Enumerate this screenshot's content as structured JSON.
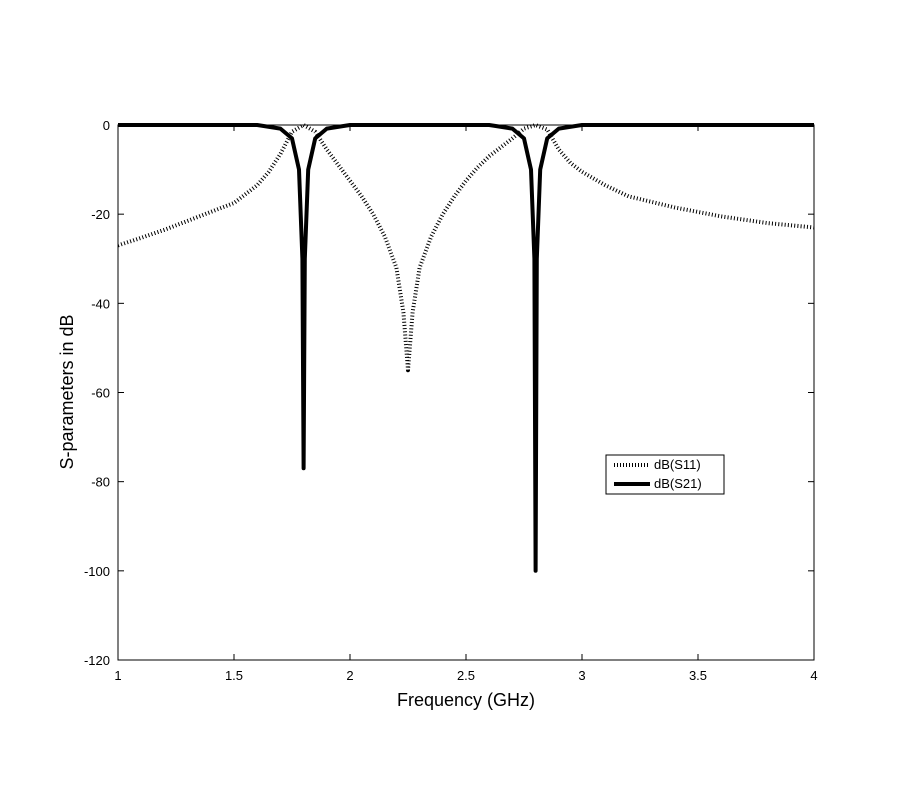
{
  "chart_data": {
    "type": "line",
    "title": "",
    "xlabel": "Frequency (GHz)",
    "ylabel": "S-parameters in dB",
    "xlim": [
      1,
      4
    ],
    "ylim": [
      -120,
      0
    ],
    "x_ticks": [
      1,
      1.5,
      2,
      2.5,
      3,
      3.5,
      4
    ],
    "x_tick_labels": [
      "1",
      "1.5",
      "2",
      "2.5",
      "3",
      "3.5",
      "4"
    ],
    "y_ticks": [
      0,
      -20,
      -40,
      -60,
      -80,
      -100,
      -120
    ],
    "y_tick_labels": [
      "0",
      "-20",
      "-40",
      "-60",
      "-80",
      "-100",
      "-120"
    ],
    "grid": false,
    "legend_position": "right",
    "series": [
      {
        "name": "dB(S11)",
        "style": "dotted",
        "color": "#000000",
        "points": [
          [
            1.0,
            -27.0
          ],
          [
            1.1,
            -25.3
          ],
          [
            1.2,
            -23.5
          ],
          [
            1.3,
            -21.5
          ],
          [
            1.4,
            -19.5
          ],
          [
            1.5,
            -17.5
          ],
          [
            1.6,
            -13.5
          ],
          [
            1.65,
            -10.5
          ],
          [
            1.7,
            -6.5
          ],
          [
            1.75,
            -1.5
          ],
          [
            1.8,
            0.0
          ],
          [
            1.85,
            -1.5
          ],
          [
            1.9,
            -5.5
          ],
          [
            1.95,
            -9.0
          ],
          [
            2.0,
            -12.5
          ],
          [
            2.05,
            -16.0
          ],
          [
            2.1,
            -20.0
          ],
          [
            2.15,
            -25.0
          ],
          [
            2.2,
            -32.0
          ],
          [
            2.23,
            -42.0
          ],
          [
            2.25,
            -55.0
          ],
          [
            2.27,
            -42.0
          ],
          [
            2.3,
            -32.0
          ],
          [
            2.35,
            -25.0
          ],
          [
            2.4,
            -20.0
          ],
          [
            2.45,
            -16.0
          ],
          [
            2.5,
            -12.5
          ],
          [
            2.55,
            -9.5
          ],
          [
            2.6,
            -7.0
          ],
          [
            2.65,
            -5.0
          ],
          [
            2.7,
            -3.0
          ],
          [
            2.75,
            -0.8
          ],
          [
            2.8,
            0.0
          ],
          [
            2.85,
            -1.0
          ],
          [
            2.9,
            -5.5
          ],
          [
            2.95,
            -8.5
          ],
          [
            3.0,
            -10.5
          ],
          [
            3.1,
            -13.5
          ],
          [
            3.2,
            -16.0
          ],
          [
            3.4,
            -18.5
          ],
          [
            3.6,
            -20.5
          ],
          [
            3.8,
            -22.0
          ],
          [
            4.0,
            -23.0
          ]
        ]
      },
      {
        "name": "dB(S21)",
        "style": "solid",
        "color": "#000000",
        "points": [
          [
            1.0,
            0.0
          ],
          [
            1.6,
            0.0
          ],
          [
            1.7,
            -0.8
          ],
          [
            1.75,
            -3.0
          ],
          [
            1.78,
            -10.0
          ],
          [
            1.795,
            -30.0
          ],
          [
            1.8,
            -77.0
          ],
          [
            1.805,
            -30.0
          ],
          [
            1.82,
            -10.0
          ],
          [
            1.85,
            -3.0
          ],
          [
            1.9,
            -0.8
          ],
          [
            2.0,
            0.0
          ],
          [
            2.6,
            0.0
          ],
          [
            2.7,
            -0.8
          ],
          [
            2.75,
            -3.0
          ],
          [
            2.78,
            -10.0
          ],
          [
            2.795,
            -30.0
          ],
          [
            2.8,
            -100.0
          ],
          [
            2.805,
            -30.0
          ],
          [
            2.82,
            -10.0
          ],
          [
            2.85,
            -3.0
          ],
          [
            2.9,
            -0.8
          ],
          [
            3.0,
            0.0
          ],
          [
            4.0,
            0.0
          ]
        ]
      }
    ]
  }
}
